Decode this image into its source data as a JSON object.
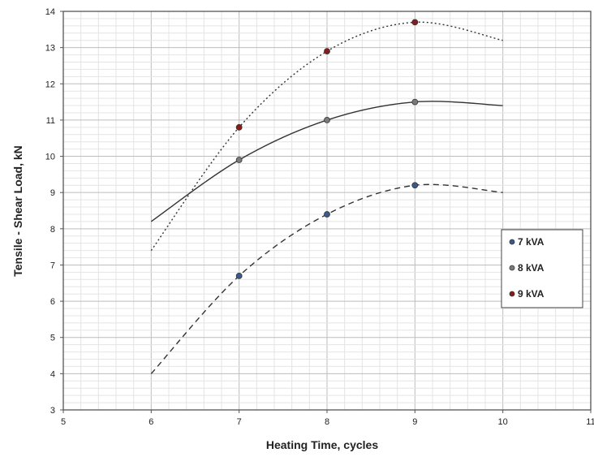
{
  "chart_data": {
    "type": "line",
    "title": "",
    "xlabel": "Heating Time, cycles",
    "ylabel": "Tensile - Shear Load, kN",
    "xlim": [
      5,
      11
    ],
    "ylim": [
      3,
      14
    ],
    "xticks": [
      "5",
      "6",
      "7",
      "8",
      "9",
      "10",
      "11"
    ],
    "yticks": [
      "3",
      "4",
      "5",
      "6",
      "7",
      "8",
      "9",
      "10",
      "11",
      "12",
      "13",
      "14"
    ],
    "grid": true,
    "legend_position": "right",
    "series": [
      {
        "name": "7 kVA",
        "color": "#3a5a8c",
        "line_style": "dashed",
        "points": [
          [
            7,
            6.7
          ],
          [
            8,
            8.4
          ],
          [
            9,
            9.2
          ]
        ],
        "curve": [
          [
            6,
            4.0
          ],
          [
            7,
            6.7
          ],
          [
            8,
            8.4
          ],
          [
            9,
            9.2
          ],
          [
            10,
            9.0
          ]
        ]
      },
      {
        "name": "8 kVA",
        "color": "#7a7a7a",
        "line_style": "solid",
        "points": [
          [
            7,
            9.9
          ],
          [
            8,
            11.0
          ],
          [
            9,
            11.5
          ]
        ],
        "curve": [
          [
            6,
            8.2
          ],
          [
            7,
            9.9
          ],
          [
            8,
            11.0
          ],
          [
            9,
            11.5
          ],
          [
            10,
            11.4
          ]
        ]
      },
      {
        "name": "9 kVA",
        "color": "#8b1a1a",
        "line_style": "dotted",
        "points": [
          [
            7,
            10.8
          ],
          [
            8,
            12.9
          ],
          [
            9,
            13.7
          ]
        ],
        "curve": [
          [
            6,
            7.4
          ],
          [
            7,
            10.8
          ],
          [
            8,
            12.9
          ],
          [
            9,
            13.7
          ],
          [
            10,
            13.2
          ]
        ]
      }
    ]
  }
}
